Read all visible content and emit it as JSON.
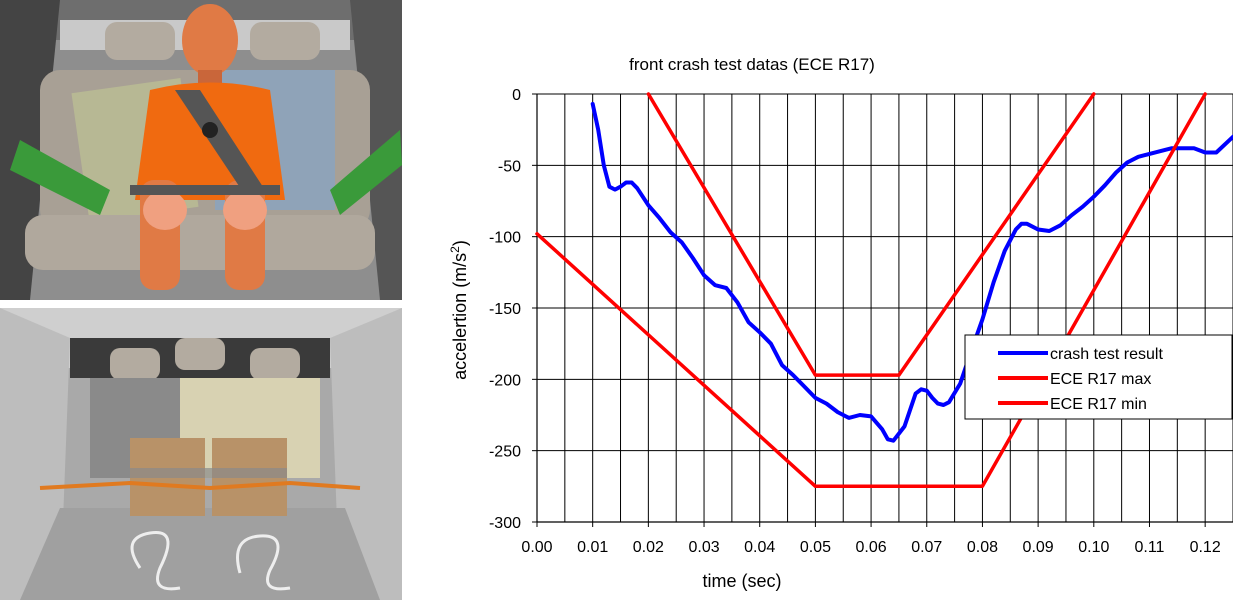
{
  "chart_data": {
    "type": "line",
    "title": "front crash test datas (ECE R17)",
    "xlabel": "time (sec)",
    "ylabel_main": "accelertion (m/s",
    "ylabel_sup": "2",
    "ylabel_end": ")",
    "xlim": [
      0,
      0.125
    ],
    "ylim": [
      -300,
      0
    ],
    "x_ticks": [
      "0.00",
      "0.01",
      "0.02",
      "0.03",
      "0.04",
      "0.05",
      "0.06",
      "0.07",
      "0.08",
      "0.09",
      "0.10",
      "0.11",
      "0.12"
    ],
    "y_ticks": [
      "0",
      "-50",
      "-100",
      "-150",
      "-200",
      "-250",
      "-300"
    ],
    "grid": true,
    "legend_position": "right",
    "series": [
      {
        "name": "crash test result",
        "color": "#0000ff",
        "x": [
          0.01,
          0.011,
          0.012,
          0.013,
          0.014,
          0.015,
          0.016,
          0.017,
          0.018,
          0.02,
          0.022,
          0.024,
          0.026,
          0.028,
          0.03,
          0.032,
          0.034,
          0.036,
          0.038,
          0.04,
          0.042,
          0.044,
          0.046,
          0.048,
          0.05,
          0.052,
          0.054,
          0.056,
          0.058,
          0.06,
          0.062,
          0.063,
          0.064,
          0.066,
          0.068,
          0.069,
          0.07,
          0.071,
          0.072,
          0.073,
          0.074,
          0.076,
          0.078,
          0.08,
          0.082,
          0.084,
          0.086,
          0.087,
          0.088,
          0.09,
          0.092,
          0.094,
          0.096,
          0.098,
          0.1,
          0.102,
          0.104,
          0.106,
          0.108,
          0.11,
          0.112,
          0.114,
          0.116,
          0.118,
          0.12,
          0.122,
          0.125
        ],
        "y": [
          -7,
          -25,
          -50,
          -65,
          -67,
          -65,
          -62,
          -62,
          -66,
          -78,
          -87,
          -97,
          -104,
          -115,
          -127,
          -134,
          -136,
          -146,
          -160,
          -167,
          -175,
          -190,
          -197,
          -205,
          -213,
          -217,
          -223,
          -227,
          -225,
          -226,
          -235,
          -242,
          -243,
          -233,
          -210,
          -207,
          -208,
          -213,
          -217,
          -218,
          -216,
          -203,
          -180,
          -158,
          -132,
          -110,
          -95,
          -91,
          -91,
          -95,
          -96,
          -92,
          -85,
          -79,
          -72,
          -64,
          -55,
          -48,
          -44,
          -42,
          -40,
          -38,
          -38,
          -38,
          -41,
          -41,
          -30
        ]
      },
      {
        "name": "ECE R17 max",
        "color": "#ff0000",
        "x": [
          0.02,
          0.05,
          0.065,
          0.1
        ],
        "y": [
          0,
          -197,
          -197,
          0
        ]
      },
      {
        "name": "ECE R17 min",
        "color": "#ff0000",
        "x": [
          0.0,
          0.05,
          0.08,
          0.12
        ],
        "y": [
          -98,
          -275,
          -275,
          0
        ]
      }
    ]
  },
  "photos": {
    "top_alt": "crash test dummy seated on rear bench in vehicle",
    "bottom_alt": "vehicle interior with wooden test blocks behind rear seats"
  },
  "colors": {
    "seat": "#a8a095",
    "dummy": "#e07a45",
    "shirt": "#f06a10",
    "strap": "#3a9a3a",
    "panel_blue": "#8fa3b8",
    "panel_green": "#b7b894",
    "wood": "#b89268"
  }
}
